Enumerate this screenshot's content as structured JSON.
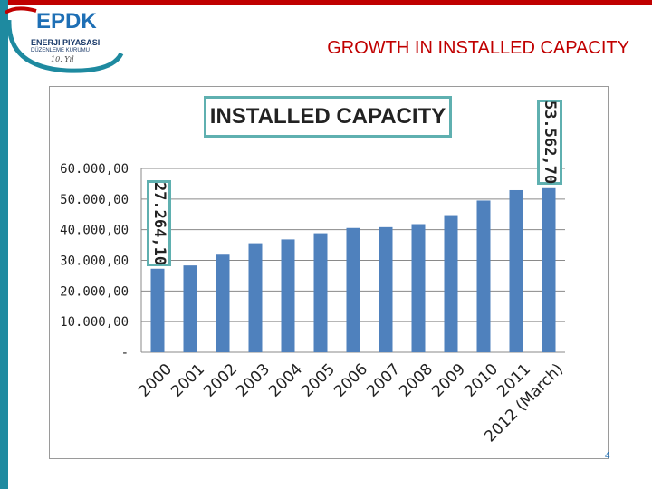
{
  "header": {
    "title": "GROWTH IN INSTALLED CAPACITY",
    "logo": {
      "brand": "EPDK",
      "line1": "ENERJI PIYASASI",
      "line2": "DÜZENLEME KURUMU",
      "signature": "10. Yıl"
    }
  },
  "page_number": "4",
  "colors": {
    "title_red": "#c00000",
    "bar_blue": "#4f81bd",
    "callout_border": "#5fb0b0",
    "side_bar": "#1e8aa0"
  },
  "chart_data": {
    "type": "bar",
    "title": "INSTALLED CAPACITY",
    "categories": [
      "2000",
      "2001",
      "2002",
      "2003",
      "2004",
      "2005",
      "2006",
      "2007",
      "2008",
      "2009",
      "2010",
      "2011",
      "2012 (March)"
    ],
    "values": [
      27264.1,
      28332,
      31846,
      35587,
      36824,
      38844,
      40565,
      40836,
      41817,
      44761,
      49524,
      52911,
      53562.7
    ],
    "ylim": [
      0,
      60000
    ],
    "yticks": [
      {
        "value": 0,
        "label": "-"
      },
      {
        "value": 10000,
        "label": "10.000,00"
      },
      {
        "value": 20000,
        "label": "20.000,00"
      },
      {
        "value": 30000,
        "label": "30.000,00"
      },
      {
        "value": 40000,
        "label": "40.000,00"
      },
      {
        "value": 50000,
        "label": "50.000,00"
      },
      {
        "value": 60000,
        "label": "60.000,00"
      }
    ],
    "grid": true,
    "annotations": [
      {
        "category": "2000",
        "label": "27.264,10"
      },
      {
        "category": "2012 (March)",
        "label": "53.562,70"
      }
    ]
  }
}
